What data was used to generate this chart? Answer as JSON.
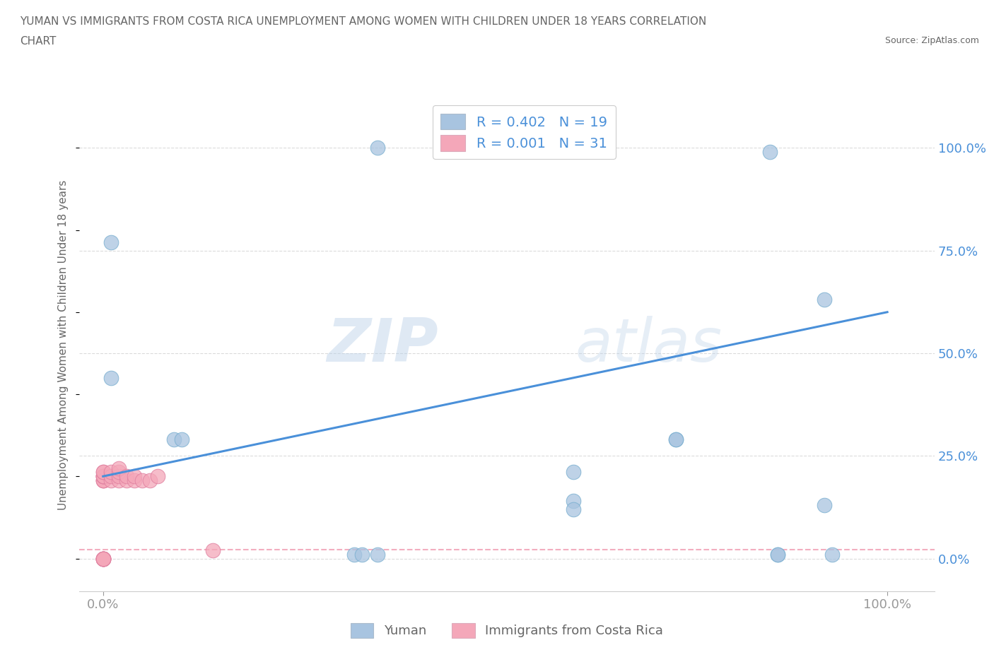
{
  "title_line1": "YUMAN VS IMMIGRANTS FROM COSTA RICA UNEMPLOYMENT AMONG WOMEN WITH CHILDREN UNDER 18 YEARS CORRELATION",
  "title_line2": "CHART",
  "source": "Source: ZipAtlas.com",
  "ylabel": "Unemployment Among Women with Children Under 18 years",
  "x_tick_labels": [
    "0.0%",
    "100.0%"
  ],
  "y_tick_labels_right": [
    "0.0%",
    "25.0%",
    "50.0%",
    "75.0%",
    "100.0%"
  ],
  "yuman_color": "#a8c4e0",
  "immigrants_color": "#f4a7b9",
  "line_color": "#4a90d9",
  "imm_line_color": "#f09ab0",
  "legend_text_color": "#4a90d9",
  "title_color": "#666666",
  "watermark_zip": "ZIP",
  "watermark_atlas": "atlas",
  "R_yuman": 0.402,
  "N_yuman": 19,
  "R_immigrants": 0.001,
  "N_immigrants": 31,
  "yuman_x": [
    0.01,
    0.01,
    0.09,
    0.1,
    0.35,
    0.6,
    0.6,
    0.73,
    0.73,
    0.85,
    0.86,
    0.86,
    0.92,
    0.93,
    0.35,
    0.6,
    0.32,
    0.33,
    0.92
  ],
  "yuman_y": [
    0.77,
    0.44,
    0.29,
    0.29,
    1.0,
    0.21,
    0.14,
    0.29,
    0.29,
    0.99,
    0.01,
    0.01,
    0.13,
    0.01,
    0.01,
    0.12,
    0.01,
    0.01,
    0.63
  ],
  "immigrants_x": [
    0.0,
    0.0,
    0.0,
    0.0,
    0.0,
    0.0,
    0.0,
    0.0,
    0.0,
    0.0,
    0.0,
    0.0,
    0.0,
    0.0,
    0.0,
    0.0,
    0.01,
    0.01,
    0.01,
    0.02,
    0.02,
    0.02,
    0.02,
    0.03,
    0.03,
    0.04,
    0.04,
    0.05,
    0.06,
    0.07,
    0.14
  ],
  "immigrants_y": [
    0.0,
    0.0,
    0.0,
    0.0,
    0.0,
    0.0,
    0.0,
    0.19,
    0.19,
    0.19,
    0.2,
    0.2,
    0.2,
    0.2,
    0.21,
    0.21,
    0.19,
    0.2,
    0.21,
    0.19,
    0.2,
    0.21,
    0.22,
    0.19,
    0.2,
    0.19,
    0.2,
    0.19,
    0.19,
    0.2,
    0.02
  ],
  "line_x_start": 0.0,
  "line_x_end": 1.0,
  "line_y_start": 0.2,
  "line_y_end": 0.6,
  "imm_line_y": 0.022,
  "xlim": [
    -0.03,
    1.06
  ],
  "ylim": [
    -0.08,
    1.12
  ],
  "background_color": "#ffffff",
  "grid_color": "#cccccc"
}
